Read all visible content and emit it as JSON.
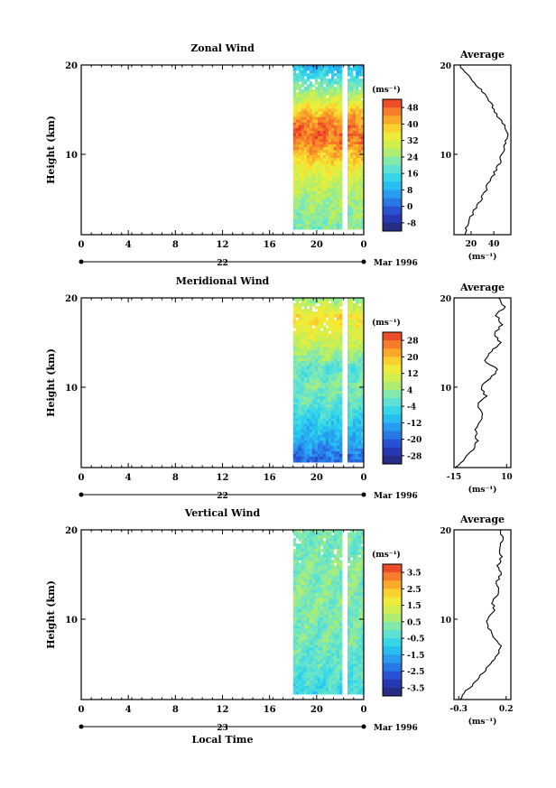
{
  "figure": {
    "xlabel": "Local Time",
    "date_caption": "Mar 1996",
    "unit_label": "(ms⁻¹)",
    "avg_unit": "(ms⁻¹)"
  },
  "chart_data": [
    {
      "type": "heatmap",
      "title": "Zonal Wind",
      "ylabel": "Height (km)",
      "xlabel": "",
      "x_ticks": [
        "0",
        "4",
        "8",
        "12",
        "16",
        "20",
        "0"
      ],
      "y_ticks": [
        "20",
        "10"
      ],
      "ylim": [
        1,
        20
      ],
      "xlim_hours": [
        0,
        28
      ],
      "date_label": "22",
      "data_extent_hours": [
        21,
        28
      ],
      "gap_hours": [
        25.9,
        26.5
      ],
      "colorbar": {
        "unit": "(ms⁻¹)",
        "ticks": [
          "48",
          "40",
          "32",
          "24",
          "16",
          "8",
          "0",
          "-8"
        ],
        "min": -12,
        "max": 52
      },
      "profile_columns": {
        "heights_km": [
          2,
          4,
          6,
          8,
          10,
          12,
          14,
          16,
          18,
          20
        ],
        "values": [
          22,
          24,
          28,
          32,
          40,
          48,
          44,
          30,
          20,
          8
        ]
      },
      "average": {
        "title": "Average",
        "x_ticks": [
          "20",
          "40"
        ],
        "xlim": [
          5,
          55
        ],
        "height_km": [
          1,
          2,
          3,
          4,
          5,
          6,
          7,
          8,
          9,
          10,
          11,
          12,
          13,
          14,
          15,
          16,
          17,
          18,
          19,
          20
        ],
        "values": [
          14,
          16,
          20,
          24,
          29,
          33,
          36,
          41,
          45,
          47,
          50,
          52,
          50,
          45,
          40,
          36,
          30,
          22,
          16,
          10
        ]
      }
    },
    {
      "type": "heatmap",
      "title": "Meridional Wind",
      "ylabel": "Height (km)",
      "xlabel": "",
      "x_ticks": [
        "0",
        "4",
        "8",
        "12",
        "16",
        "20",
        "0"
      ],
      "y_ticks": [
        "20",
        "10"
      ],
      "ylim": [
        1,
        20
      ],
      "xlim_hours": [
        0,
        28
      ],
      "date_label": "22",
      "data_extent_hours": [
        21,
        28
      ],
      "gap_hours": [
        25.9,
        26.5
      ],
      "colorbar": {
        "unit": "(ms⁻¹)",
        "ticks": [
          "28",
          "20",
          "12",
          "4",
          "-4",
          "-12",
          "-20",
          "-28"
        ],
        "min": -32,
        "max": 32
      },
      "profile_columns": {
        "heights_km": [
          2,
          4,
          6,
          8,
          10,
          12,
          14,
          16,
          18,
          20
        ],
        "values": [
          -20,
          -12,
          -8,
          -2,
          2,
          -2,
          6,
          12,
          16,
          4
        ]
      },
      "average": {
        "title": "Average",
        "x_ticks": [
          "-15",
          "10"
        ],
        "xlim": [
          -15,
          12
        ],
        "height_km": [
          1,
          2,
          3,
          4,
          5,
          6,
          7,
          8,
          9,
          10,
          11,
          12,
          13,
          14,
          15,
          16,
          17,
          18,
          19,
          20
        ],
        "values": [
          -14,
          -10,
          -6,
          -4,
          -5,
          -3,
          -1,
          -4,
          0,
          -2,
          2,
          6,
          -1,
          3,
          7,
          4,
          8,
          5,
          9,
          6
        ]
      }
    },
    {
      "type": "heatmap",
      "title": "Vertical Wind",
      "ylabel": "Height (km)",
      "xlabel": "Local Time",
      "x_ticks": [
        "0",
        "4",
        "8",
        "12",
        "16",
        "20",
        "0"
      ],
      "y_ticks": [
        "20",
        "10"
      ],
      "ylim": [
        1,
        20
      ],
      "xlim_hours": [
        0,
        28
      ],
      "date_label": "23",
      "data_extent_hours": [
        21,
        28
      ],
      "gap_hours": [
        25.9,
        26.5
      ],
      "colorbar": {
        "unit": "(ms⁻¹)",
        "ticks": [
          "3.5",
          "2.5",
          "1.5",
          "0.5",
          "-0.5",
          "-1.5",
          "-2.5",
          "-3.5"
        ],
        "min": -4,
        "max": 4
      },
      "profile_columns": {
        "heights_km": [
          2,
          4,
          6,
          8,
          10,
          12,
          14,
          16,
          18,
          20
        ],
        "values": [
          -0.6,
          -0.3,
          -0.1,
          0.1,
          0.2,
          0.3,
          0.2,
          0.3,
          0.1,
          0.2
        ]
      },
      "average": {
        "title": "Average",
        "x_ticks": [
          "-0.3",
          "0.2"
        ],
        "xlim": [
          -0.35,
          0.25
        ],
        "height_km": [
          1,
          2,
          3,
          4,
          5,
          6,
          7,
          8,
          9,
          10,
          11,
          12,
          13,
          14,
          15,
          16,
          17,
          18,
          19,
          20
        ],
        "values": [
          -0.28,
          -0.22,
          -0.12,
          -0.05,
          0.05,
          0.1,
          0.15,
          0.06,
          0.02,
          0.0,
          0.08,
          0.05,
          0.12,
          0.1,
          0.14,
          0.11,
          0.15,
          0.13,
          0.16,
          0.14
        ]
      }
    }
  ]
}
